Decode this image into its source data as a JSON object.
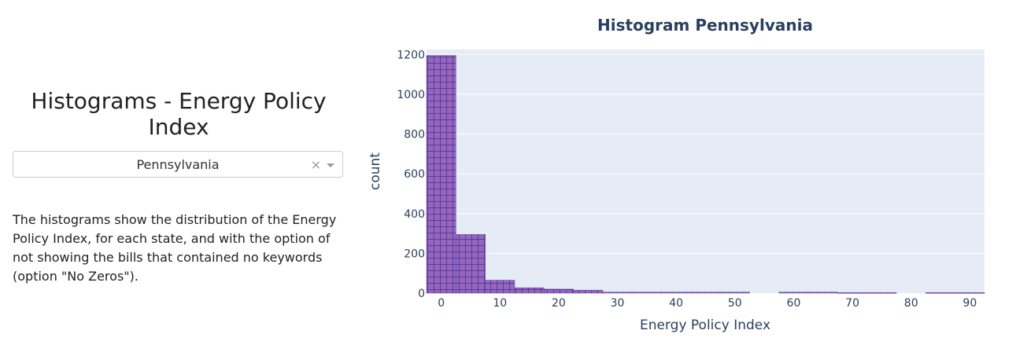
{
  "left_panel": {
    "title": "Histograms - Energy Policy Index",
    "dropdown": {
      "selected": "Pennsylvania",
      "clear_symbol": "×",
      "icon": "chevron-down-icon"
    },
    "description": "The histograms show the distribution of the Energy Policy Index, for each state, and with the option of not showing the bills that contained no keywords (option \"No Zeros\")."
  },
  "chart_data": {
    "type": "bar",
    "title": "Histogram Pennsylvania",
    "xlabel": "Energy Policy Index",
    "ylabel": "count",
    "xlim": [
      -2.5,
      92.5
    ],
    "ylim": [
      0,
      1225
    ],
    "x_ticks": [
      0,
      10,
      20,
      30,
      40,
      50,
      60,
      70,
      80,
      90
    ],
    "y_ticks": [
      0,
      200,
      400,
      600,
      800,
      1000,
      1200
    ],
    "bin_width": 5,
    "bins": [
      {
        "start": -2.5,
        "end": 2.5,
        "count": 1195
      },
      {
        "start": 2.5,
        "end": 7.5,
        "count": 295
      },
      {
        "start": 7.5,
        "end": 12.5,
        "count": 65
      },
      {
        "start": 12.5,
        "end": 17.5,
        "count": 27
      },
      {
        "start": 17.5,
        "end": 22.5,
        "count": 20
      },
      {
        "start": 22.5,
        "end": 27.5,
        "count": 15
      },
      {
        "start": 27.5,
        "end": 32.5,
        "count": 5
      },
      {
        "start": 32.5,
        "end": 37.5,
        "count": 5
      },
      {
        "start": 37.5,
        "end": 42.5,
        "count": 5
      },
      {
        "start": 42.5,
        "end": 47.5,
        "count": 5
      },
      {
        "start": 47.5,
        "end": 52.5,
        "count": 5
      },
      {
        "start": 52.5,
        "end": 57.5,
        "count": 0
      },
      {
        "start": 57.5,
        "end": 62.5,
        "count": 5
      },
      {
        "start": 62.5,
        "end": 67.5,
        "count": 5
      },
      {
        "start": 67.5,
        "end": 72.5,
        "count": 3
      },
      {
        "start": 72.5,
        "end": 77.5,
        "count": 3
      },
      {
        "start": 77.5,
        "end": 82.5,
        "count": 0
      },
      {
        "start": 82.5,
        "end": 87.5,
        "count": 3
      },
      {
        "start": 87.5,
        "end": 92.5,
        "count": 3
      }
    ],
    "grid": true,
    "colors": {
      "bar_fill": "#9467bd",
      "bar_pattern": "#5b3aa0",
      "plot_bg": "#e5ecf6",
      "grid": "#ffffff",
      "text": "#2a3f5f"
    }
  }
}
